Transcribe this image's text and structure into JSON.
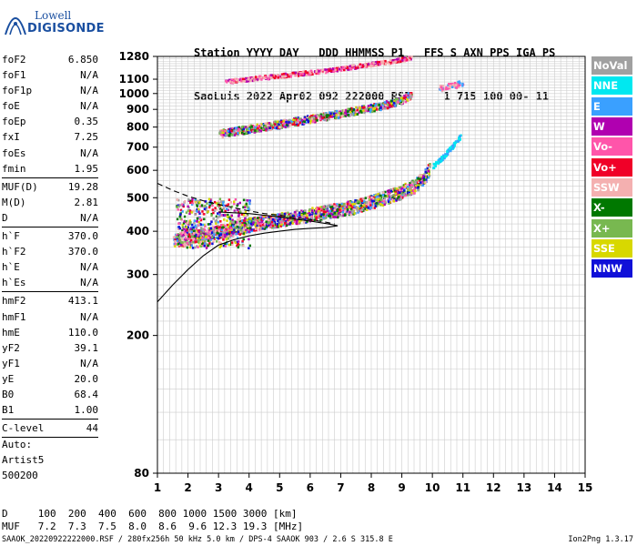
{
  "logo": {
    "line1": "Lowell",
    "line2": "DIGISONDE"
  },
  "header": {
    "line1": "Station YYYY DAY   DDD HHMMSS P1   FFS S AXN PPS IGA PS",
    "line2": "SaoLuis 2022 Apr02 092 222000 RSF     1 715 100 00- 11"
  },
  "params": [
    {
      "k": "foF2",
      "v": "6.850"
    },
    {
      "k": "foF1",
      "v": "N/A"
    },
    {
      "k": "foF1p",
      "v": "N/A"
    },
    {
      "k": "foE",
      "v": "N/A"
    },
    {
      "k": "foEp",
      "v": "0.35"
    },
    {
      "k": "fxI",
      "v": "7.25"
    },
    {
      "k": "foEs",
      "v": "N/A"
    },
    {
      "k": "fmin",
      "v": "1.95",
      "sep": true
    },
    {
      "k": "MUF(D)",
      "v": "19.28"
    },
    {
      "k": "M(D)",
      "v": "2.81"
    },
    {
      "k": "D",
      "v": "N/A",
      "sep": true
    },
    {
      "k": "h`F",
      "v": "370.0"
    },
    {
      "k": "h`F2",
      "v": "370.0"
    },
    {
      "k": "h`E",
      "v": "N/A"
    },
    {
      "k": "h`Es",
      "v": "N/A",
      "sep": true
    },
    {
      "k": "hmF2",
      "v": "413.1"
    },
    {
      "k": "hmF1",
      "v": "N/A"
    },
    {
      "k": "hmE",
      "v": "110.0"
    },
    {
      "k": "yF2",
      "v": "39.1"
    },
    {
      "k": "yF1",
      "v": "N/A"
    },
    {
      "k": "yE",
      "v": "20.0"
    },
    {
      "k": "B0",
      "v": "68.4"
    },
    {
      "k": "B1",
      "v": "1.00",
      "sep": true
    },
    {
      "k": "C-level",
      "v": "44",
      "sep": true
    }
  ],
  "auto": {
    "line1": "Auto:",
    "line2": "Artist5",
    "line3": "500200"
  },
  "legend": [
    {
      "label": "NoVal",
      "color": "#a0a0a0"
    },
    {
      "label": "NNE",
      "color": "#00e8f0"
    },
    {
      "label": "E",
      "color": "#3aa0ff"
    },
    {
      "label": "W",
      "color": "#b000b0"
    },
    {
      "label": "Vo-",
      "color": "#ff55aa"
    },
    {
      "label": "Vo+",
      "color": "#f00028"
    },
    {
      "label": "SSW",
      "color": "#f4b0b0"
    },
    {
      "label": "X-",
      "color": "#007800"
    },
    {
      "label": "X+",
      "color": "#78b850"
    },
    {
      "label": "SSE",
      "color": "#d8d800"
    },
    {
      "label": "NNW",
      "color": "#1010d8"
    }
  ],
  "footer": {
    "d_line": "D     100  200  400  600  800 1000 1500 3000 [km]",
    "muf_line": "MUF   7.2  7.3  7.5  8.0  8.6  9.6 12.3 19.3 [MHz]"
  },
  "bottom": {
    "info": "SAAOK_20220922222000.RSF / 280fx256h 50 kHz 5.0 km / DPS-4 SAAOK 903 / 2.6 S 315.8 E",
    "version": "Ion2Png 1.3.17"
  },
  "chart_data": {
    "type": "scatter",
    "title": "",
    "xlabel": "",
    "ylabel": "",
    "xlim": [
      1,
      15
    ],
    "ylim": [
      80,
      1280
    ],
    "y_scale": "log",
    "x_ticks": [
      1,
      2,
      3,
      4,
      5,
      6,
      7,
      8,
      9,
      10,
      11,
      12,
      13,
      14,
      15
    ],
    "y_ticks": [
      80,
      200,
      300,
      400,
      500,
      600,
      700,
      800,
      900,
      1000,
      1100,
      1280
    ],
    "grid": true,
    "series": [
      {
        "name": "O-trace",
        "points": [
          [
            1.5,
            380
          ],
          [
            2.0,
            385
          ],
          [
            2.5,
            392
          ],
          [
            3.0,
            400
          ],
          [
            3.5,
            410
          ],
          [
            4.0,
            420
          ],
          [
            4.5,
            428
          ],
          [
            5.0,
            435
          ],
          [
            5.5,
            442
          ],
          [
            6.0,
            450
          ],
          [
            6.5,
            458
          ],
          [
            7.0,
            465
          ],
          [
            7.5,
            475
          ],
          [
            8.0,
            490
          ],
          [
            8.5,
            505
          ],
          [
            9.0,
            525
          ],
          [
            9.4,
            545
          ],
          [
            9.7,
            575
          ],
          [
            9.9,
            610
          ]
        ]
      },
      {
        "name": "X-trace",
        "points": [
          [
            10.0,
            620
          ],
          [
            10.3,
            655
          ],
          [
            10.6,
            700
          ],
          [
            10.9,
            755
          ]
        ]
      },
      {
        "name": "2-hop",
        "points": [
          [
            3.0,
            770
          ],
          [
            4.0,
            795
          ],
          [
            5.0,
            820
          ],
          [
            6.0,
            850
          ],
          [
            7.0,
            880
          ],
          [
            8.0,
            915
          ],
          [
            8.5,
            935
          ],
          [
            9.0,
            965
          ],
          [
            9.3,
            1000
          ]
        ]
      },
      {
        "name": "3-hop",
        "points": [
          [
            3.2,
            1090
          ],
          [
            4.5,
            1120
          ],
          [
            5.5,
            1145
          ],
          [
            6.5,
            1170
          ],
          [
            7.5,
            1205
          ],
          [
            8.5,
            1240
          ],
          [
            9.3,
            1275
          ]
        ]
      },
      {
        "name": "3-hop-upper",
        "points": [
          [
            10.2,
            1040
          ],
          [
            10.6,
            1060
          ],
          [
            11.0,
            1080
          ]
        ]
      }
    ],
    "profile_solid": [
      [
        1.0,
        250
      ],
      [
        1.5,
        280
      ],
      [
        2.0,
        310
      ],
      [
        2.5,
        340
      ],
      [
        3.0,
        365
      ],
      [
        3.5,
        378
      ],
      [
        4.0,
        388
      ],
      [
        4.5,
        395
      ],
      [
        5.0,
        400
      ],
      [
        5.5,
        405
      ],
      [
        6.0,
        408
      ],
      [
        6.5,
        410
      ],
      [
        6.9,
        415
      ],
      [
        6.6,
        420
      ],
      [
        6.0,
        428
      ],
      [
        5.0,
        440
      ],
      [
        4.0,
        450
      ],
      [
        3.0,
        455
      ]
    ],
    "profile_dashed": [
      [
        1.0,
        550
      ],
      [
        1.5,
        525
      ],
      [
        2.0,
        505
      ],
      [
        2.5,
        490
      ],
      [
        3.0,
        478
      ],
      [
        3.5,
        468
      ],
      [
        4.0,
        458
      ],
      [
        4.5,
        450
      ],
      [
        5.0,
        445
      ],
      [
        5.5,
        438
      ],
      [
        6.0,
        432
      ],
      [
        6.5,
        425
      ],
      [
        6.8,
        420
      ]
    ]
  }
}
